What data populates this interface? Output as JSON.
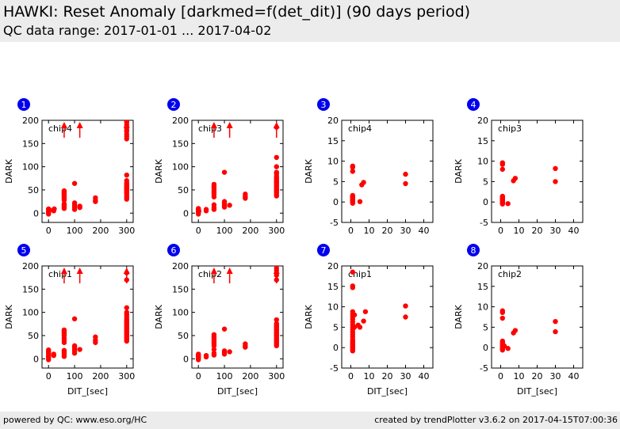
{
  "header": {
    "title": "HAWKI: Reset Anomaly [darkmed=f(det_dit)] (90 days period)",
    "subtitle": "QC data range: 2017-01-01 ... 2017-04-02"
  },
  "footer": {
    "left": "powered by QC: www.eso.org/HC",
    "right": "created by trendPlotter v3.6.2 on 2017-04-15T07:00:36"
  },
  "colors": {
    "marker": "#ff0000",
    "badge": "#0000ee",
    "header_bg": "#ececec"
  },
  "chart_data": [
    {
      "type": "scatter",
      "index": "1",
      "label": "chip4",
      "xlabel": "",
      "ylabel": "DARK",
      "xlim": [
        -25,
        325
      ],
      "ylim": [
        -20,
        200
      ],
      "xticks": [
        0,
        100,
        200,
        300
      ],
      "yticks": [
        0,
        50,
        100,
        150,
        200
      ],
      "x": [
        0,
        0,
        0,
        0,
        0,
        2,
        2,
        20,
        20,
        22,
        60,
        60,
        60,
        60,
        60,
        60,
        60,
        60,
        60,
        60,
        60,
        60,
        60,
        60,
        60,
        100,
        100,
        100,
        100,
        100,
        120,
        120,
        180,
        180,
        180,
        300,
        300,
        300,
        300,
        300,
        300,
        300,
        300,
        300,
        300,
        300,
        300,
        300,
        300,
        300,
        300,
        300,
        300,
        300,
        300,
        300,
        300,
        300,
        300,
        300,
        300
      ],
      "y": [
        -2,
        1,
        3,
        6,
        9,
        5,
        8,
        5,
        7,
        9,
        10,
        13,
        16,
        18,
        20,
        28,
        31,
        34,
        36,
        38,
        40,
        42,
        44,
        46,
        48,
        8,
        13,
        18,
        22,
        64,
        12,
        15,
        25,
        28,
        33,
        30,
        33,
        36,
        40,
        43,
        45,
        47,
        50,
        52,
        54,
        56,
        58,
        60,
        62,
        65,
        70,
        82,
        160,
        165,
        170,
        176,
        180,
        186,
        190,
        195,
        198
      ],
      "outliers": [
        {
          "x": 60,
          "y": 195
        },
        {
          "x": 120,
          "y": 195
        },
        {
          "x": 300,
          "y": 195
        }
      ]
    },
    {
      "type": "scatter",
      "index": "2",
      "label": "chip3",
      "xlabel": "",
      "ylabel": "",
      "xlim": [
        -25,
        325
      ],
      "ylim": [
        -20,
        200
      ],
      "xticks": [
        0,
        100,
        200,
        300
      ],
      "yticks": [
        0,
        50,
        100,
        150,
        200
      ],
      "x": [
        0,
        0,
        0,
        0,
        0,
        2,
        30,
        30,
        60,
        60,
        60,
        60,
        60,
        60,
        60,
        60,
        60,
        60,
        60,
        100,
        100,
        100,
        100,
        100,
        120,
        180,
        180,
        180,
        300,
        300,
        300,
        300,
        300,
        300,
        300,
        300,
        300,
        300,
        300,
        300,
        300,
        300,
        300,
        300,
        300,
        300,
        300,
        300
      ],
      "y": [
        -2,
        2,
        5,
        8,
        10,
        4,
        5,
        8,
        8,
        12,
        18,
        35,
        40,
        44,
        48,
        52,
        56,
        58,
        62,
        13,
        16,
        20,
        25,
        88,
        17,
        32,
        36,
        41,
        37,
        40,
        44,
        47,
        50,
        53,
        56,
        59,
        62,
        65,
        67,
        70,
        73,
        76,
        80,
        85,
        88,
        100,
        120,
        185
      ],
      "outliers": [
        {
          "x": 60,
          "y": 195
        },
        {
          "x": 120,
          "y": 195
        },
        {
          "x": 300,
          "y": 195
        }
      ]
    },
    {
      "type": "scatter",
      "index": "3",
      "label": "chip4",
      "xlabel": "",
      "ylabel": "",
      "xlim": [
        -5,
        45
      ],
      "ylim": [
        -5,
        20
      ],
      "xticks": [
        0,
        10,
        20,
        30,
        40
      ],
      "yticks": [
        -5,
        0,
        5,
        10,
        15,
        20
      ],
      "x": [
        1,
        1,
        1,
        1,
        1,
        1,
        1,
        1,
        1,
        1,
        1,
        1,
        1,
        1,
        1,
        5,
        6,
        7,
        30,
        30
      ],
      "y": [
        -0.3,
        0,
        0.2,
        0.4,
        0.6,
        0.8,
        1,
        1.2,
        1.4,
        1.6,
        7.5,
        8.5,
        8.8,
        0.1,
        0.3,
        0.1,
        4.2,
        4.8,
        4.5,
        6.8
      ],
      "outliers": []
    },
    {
      "type": "scatter",
      "index": "4",
      "label": "chip3",
      "xlabel": "",
      "ylabel": "",
      "xlim": [
        -5,
        45
      ],
      "ylim": [
        -5,
        20
      ],
      "xticks": [
        0,
        10,
        20,
        30,
        40
      ],
      "yticks": [
        -5,
        0,
        5,
        10,
        15,
        20
      ],
      "x": [
        1,
        1,
        1,
        1,
        1,
        1,
        1,
        1,
        1,
        1,
        1,
        1,
        1,
        1,
        4,
        7,
        8,
        30,
        30
      ],
      "y": [
        -0.5,
        -0.3,
        0,
        0.2,
        0.4,
        0.6,
        0.8,
        1,
        1.2,
        1.4,
        8,
        9.2,
        9.6,
        -0.2,
        -0.4,
        5.2,
        5.8,
        5,
        8.2
      ],
      "outliers": []
    },
    {
      "type": "scatter",
      "index": "5",
      "label": "chip1",
      "xlabel": "DIT_[sec]",
      "ylabel": "DARK",
      "xlim": [
        -25,
        325
      ],
      "ylim": [
        -20,
        200
      ],
      "xticks": [
        0,
        100,
        200,
        300
      ],
      "yticks": [
        0,
        50,
        100,
        150,
        200
      ],
      "x": [
        0,
        0,
        0,
        0,
        0,
        0,
        0,
        20,
        20,
        60,
        60,
        60,
        60,
        60,
        60,
        60,
        60,
        60,
        60,
        60,
        60,
        60,
        100,
        100,
        100,
        100,
        100,
        100,
        120,
        180,
        180,
        180,
        300,
        300,
        300,
        300,
        300,
        300,
        300,
        300,
        300,
        300,
        300,
        300,
        300,
        300,
        300,
        300,
        300,
        300,
        300,
        300,
        300,
        300,
        300
      ],
      "y": [
        -2,
        2,
        5,
        8,
        12,
        15,
        19,
        7,
        10,
        5,
        8,
        12,
        15,
        18,
        35,
        40,
        45,
        50,
        54,
        57,
        60,
        62,
        12,
        16,
        20,
        25,
        28,
        86,
        20,
        35,
        40,
        47,
        38,
        41,
        44,
        47,
        50,
        53,
        56,
        59,
        62,
        65,
        68,
        71,
        74,
        77,
        80,
        83,
        86,
        90,
        95,
        100,
        110,
        170,
        185
      ],
      "outliers": [
        {
          "x": 60,
          "y": 195
        },
        {
          "x": 120,
          "y": 195
        },
        {
          "x": 300,
          "y": 195
        }
      ]
    },
    {
      "type": "scatter",
      "index": "6",
      "label": "chip2",
      "xlabel": "DIT_[sec]",
      "ylabel": "",
      "xlim": [
        -25,
        325
      ],
      "ylim": [
        -20,
        200
      ],
      "xticks": [
        0,
        100,
        200,
        300
      ],
      "yticks": [
        0,
        50,
        100,
        150,
        200
      ],
      "x": [
        0,
        0,
        0,
        0,
        0,
        0,
        30,
        30,
        60,
        60,
        60,
        60,
        60,
        60,
        60,
        60,
        60,
        60,
        100,
        100,
        100,
        100,
        120,
        180,
        180,
        180,
        300,
        300,
        300,
        300,
        300,
        300,
        300,
        300,
        300,
        300,
        300,
        300,
        300,
        300,
        300,
        300,
        300,
        300,
        300,
        300,
        300,
        300
      ],
      "y": [
        -2,
        1,
        3,
        6,
        8,
        10,
        4,
        7,
        8,
        12,
        20,
        28,
        32,
        36,
        40,
        44,
        48,
        52,
        10,
        13,
        17,
        64,
        15,
        25,
        28,
        32,
        28,
        31,
        34,
        37,
        40,
        43,
        46,
        49,
        52,
        55,
        58,
        61,
        64,
        67,
        70,
        73,
        76,
        84,
        170,
        180,
        190,
        195
      ],
      "outliers": [
        {
          "x": 60,
          "y": 195
        },
        {
          "x": 120,
          "y": 195
        },
        {
          "x": 300,
          "y": 195
        }
      ]
    },
    {
      "type": "scatter",
      "index": "7",
      "label": "chip1",
      "xlabel": "DIT_[sec]",
      "ylabel": "",
      "xlim": [
        -5,
        45
      ],
      "ylim": [
        -5,
        20
      ],
      "xticks": [
        0,
        10,
        20,
        30,
        40
      ],
      "yticks": [
        -5,
        0,
        5,
        10,
        15,
        20
      ],
      "x": [
        1,
        1,
        1,
        1,
        1,
        1,
        1,
        1,
        1,
        1,
        1,
        1,
        1,
        1,
        1,
        1,
        1,
        1,
        1,
        1,
        1,
        1,
        1,
        1,
        2,
        2,
        4,
        5,
        7,
        8,
        30,
        30
      ],
      "y": [
        -0.8,
        -0.5,
        -0.2,
        0,
        0.3,
        0.6,
        0.9,
        1.2,
        1.6,
        2,
        2.6,
        3.2,
        3.8,
        4.4,
        5,
        5.6,
        6.3,
        7,
        7.6,
        8.2,
        8.8,
        14.7,
        15.1,
        18.5,
        5,
        8,
        5.5,
        5,
        6.5,
        8.8,
        7.5,
        10.2
      ],
      "outliers": []
    },
    {
      "type": "scatter",
      "index": "8",
      "label": "chip2",
      "xlabel": "DIT_[sec]",
      "ylabel": "",
      "xlim": [
        -5,
        45
      ],
      "ylim": [
        -5,
        20
      ],
      "xticks": [
        0,
        10,
        20,
        30,
        40
      ],
      "yticks": [
        -5,
        0,
        5,
        10,
        15,
        20
      ],
      "x": [
        1,
        1,
        1,
        1,
        1,
        1,
        1,
        1,
        1,
        1,
        1,
        1,
        2,
        4,
        7,
        8,
        30,
        30
      ],
      "y": [
        -0.6,
        -0.3,
        0,
        0.3,
        0.6,
        0.9,
        1.2,
        1.6,
        7.2,
        8.6,
        9,
        -0.2,
        0.4,
        -0.2,
        3.6,
        4.2,
        3.9,
        6.4
      ],
      "outliers": []
    }
  ]
}
